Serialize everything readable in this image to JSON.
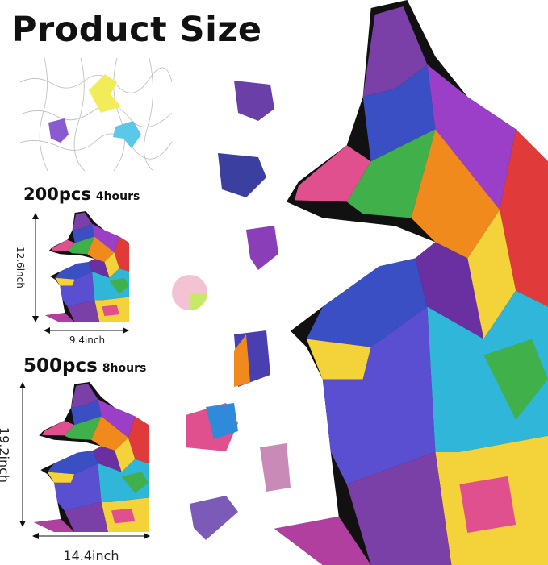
{
  "title": "Product Size",
  "options": [
    {
      "pieces": "200pcs",
      "time": "4hours",
      "height": "12.6inch",
      "width": "9.4inch"
    },
    {
      "pieces": "500pcs",
      "time": "8hours",
      "height": "19.2inch",
      "width": "14.4inch"
    }
  ],
  "colors": {
    "purple": "#7b3fa8",
    "blue": "#3b4fc4",
    "orange": "#f08a1c",
    "yellow": "#f3d23a",
    "green": "#3fb04a",
    "pink": "#e0508f",
    "cyan": "#2fb6d9"
  }
}
